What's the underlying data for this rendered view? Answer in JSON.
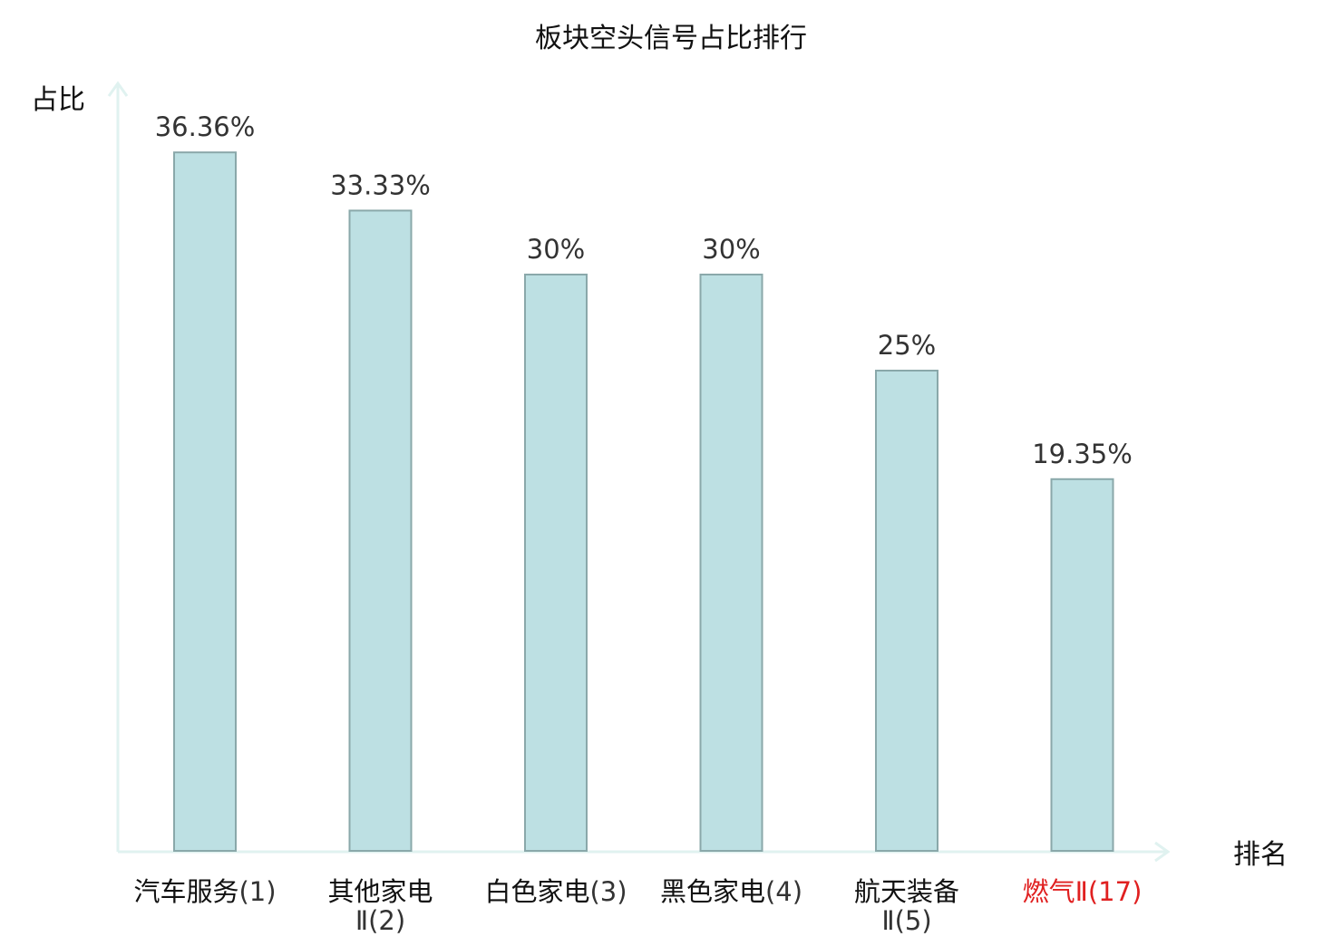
{
  "chart_data": {
    "type": "bar",
    "title": "板块空头信号占比排行",
    "ylabel": "占比",
    "xlabel": "排名",
    "categories": [
      {
        "name": "汽车服务",
        "suffix": "(1)",
        "line1": "汽车服务",
        "line1_suffix": "(1)",
        "line2": "",
        "highlight": false
      },
      {
        "name": "其他家电Ⅱ",
        "suffix": "(2)",
        "line1": "其他家电",
        "line1_suffix": "",
        "line2": "Ⅱ(2)",
        "highlight": false
      },
      {
        "name": "白色家电",
        "suffix": "(3)",
        "line1": "白色家电",
        "line1_suffix": "(3)",
        "line2": "",
        "highlight": false
      },
      {
        "name": "黑色家电",
        "suffix": "(4)",
        "line1": "黑色家电",
        "line1_suffix": "(4)",
        "line2": "",
        "highlight": false
      },
      {
        "name": "航天装备Ⅱ",
        "suffix": "(5)",
        "line1": "航天装备",
        "line1_suffix": "",
        "line2": "Ⅱ(5)",
        "highlight": false
      },
      {
        "name": "燃气Ⅱ",
        "suffix": "(17)",
        "line1": "燃气",
        "line1_suffix": "Ⅱ(17)",
        "line2": "",
        "highlight": true
      }
    ],
    "values": [
      36.36,
      33.33,
      30,
      30,
      25,
      19.35
    ],
    "value_labels": [
      "36.36%",
      "33.33%",
      "30%",
      "30%",
      "25%",
      "19.35%"
    ],
    "grid": false,
    "legend": "none"
  },
  "colors": {
    "bar_fill": "#bde0e3",
    "bar_stroke": "#8aa8aa",
    "axis": "#e0f2f0",
    "text": "#333333",
    "label_text": "#111111",
    "highlight": "#e02020"
  }
}
